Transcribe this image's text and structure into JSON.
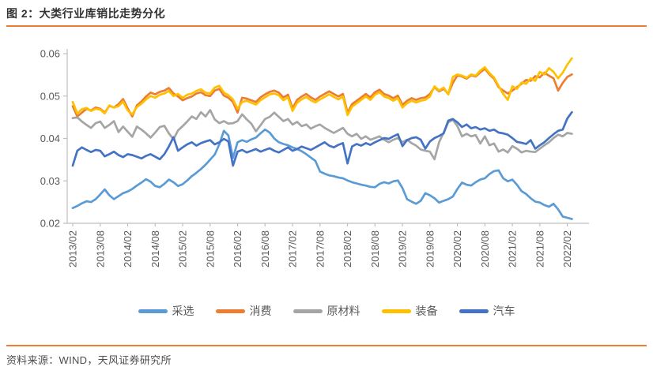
{
  "header": {
    "title": "图 2：大类行业库销比走势分化"
  },
  "footer": {
    "source": "资料来源：WIND，天风证券研究所"
  },
  "style": {
    "accent_rule_color": "#ED7D31",
    "axis_color": "#BFBFBF",
    "tick_label_color": "#595959",
    "title_color": "#333333"
  },
  "chart_data": {
    "type": "line",
    "title": "大类行业库销比走势分化",
    "xlabel": "",
    "ylabel": "",
    "ylim": [
      0.02,
      0.06
    ],
    "y_ticks": [
      0.02,
      0.03,
      0.04,
      0.05,
      0.06
    ],
    "grid": false,
    "legend_position": "bottom",
    "x_frequency": "monthly",
    "x_start": "2013/02",
    "x_end": "2022/03",
    "tick_every": 6,
    "x_tick_labels": [
      "2013/02",
      "2013/08",
      "2014/02",
      "2014/08",
      "2015/02",
      "2015/08",
      "2016/02",
      "2016/08",
      "2017/02",
      "2017/08",
      "2018/02",
      "2018/08",
      "2019/02",
      "2019/08",
      "2020/02",
      "2020/08",
      "2021/02",
      "2021/08",
      "2022/02"
    ],
    "series": [
      {
        "name": "采选",
        "color": "#5B9BD5",
        "values": [
          0.0236,
          0.0241,
          0.0247,
          0.0252,
          0.025,
          0.0257,
          0.0268,
          0.028,
          0.0266,
          0.0257,
          0.0264,
          0.0271,
          0.0275,
          0.0281,
          0.0289,
          0.0296,
          0.0304,
          0.0298,
          0.0288,
          0.0285,
          0.0293,
          0.0303,
          0.0297,
          0.0288,
          0.0292,
          0.0301,
          0.0311,
          0.0319,
          0.0328,
          0.0338,
          0.035,
          0.0362,
          0.0386,
          0.0418,
          0.0407,
          0.0354,
          0.0391,
          0.0396,
          0.0392,
          0.0398,
          0.0402,
          0.0412,
          0.0421,
          0.0414,
          0.04,
          0.0391,
          0.0387,
          0.0384,
          0.0379,
          0.0375,
          0.037,
          0.0363,
          0.0355,
          0.0347,
          0.0322,
          0.0317,
          0.0313,
          0.0311,
          0.0308,
          0.0306,
          0.0301,
          0.0297,
          0.0294,
          0.0291,
          0.0289,
          0.0286,
          0.0285,
          0.0293,
          0.0297,
          0.0294,
          0.0299,
          0.0301,
          0.0283,
          0.0257,
          0.0251,
          0.0246,
          0.0253,
          0.0271,
          0.0266,
          0.0259,
          0.0249,
          0.0253,
          0.0257,
          0.0263,
          0.0281,
          0.0296,
          0.0291,
          0.0289,
          0.0297,
          0.0303,
          0.0306,
          0.0316,
          0.0323,
          0.0325,
          0.0306,
          0.0299,
          0.0303,
          0.0291,
          0.0276,
          0.0269,
          0.0259,
          0.0251,
          0.0249,
          0.0243,
          0.0239,
          0.0246,
          0.0233,
          0.0216,
          0.0213,
          0.021
        ]
      },
      {
        "name": "消费",
        "color": "#ED7D31",
        "values": [
          0.0476,
          0.0452,
          0.0461,
          0.047,
          0.0466,
          0.0473,
          0.047,
          0.0461,
          0.0477,
          0.0473,
          0.0481,
          0.0493,
          0.0471,
          0.0452,
          0.0478,
          0.0487,
          0.0499,
          0.0508,
          0.0504,
          0.051,
          0.0513,
          0.0519,
          0.0506,
          0.0499,
          0.049,
          0.0495,
          0.0499,
          0.0506,
          0.0509,
          0.0502,
          0.05,
          0.0513,
          0.0517,
          0.0501,
          0.0496,
          0.0486,
          0.0461,
          0.0496,
          0.0494,
          0.049,
          0.0486,
          0.0497,
          0.0504,
          0.051,
          0.0513,
          0.0508,
          0.0497,
          0.0503,
          0.0471,
          0.0491,
          0.0499,
          0.0505,
          0.0497,
          0.0491,
          0.0499,
          0.0505,
          0.0511,
          0.0505,
          0.0499,
          0.0505,
          0.0461,
          0.0481,
          0.0489,
          0.0497,
          0.0505,
          0.0497,
          0.0509,
          0.0515,
          0.0505,
          0.0501,
          0.0495,
          0.0501,
          0.0479,
          0.0489,
          0.0495,
          0.0491,
          0.0495,
          0.0497,
          0.0505,
          0.0521,
          0.0511,
          0.0517,
          0.0505,
          0.0531,
          0.0549,
          0.0546,
          0.0541,
          0.0549,
          0.0546,
          0.0556,
          0.0564,
          0.0551,
          0.0541,
          0.0521,
          0.0513,
          0.0506,
          0.0513,
          0.0521,
          0.0529,
          0.0538,
          0.0536,
          0.0547,
          0.0544,
          0.0555,
          0.0548,
          0.0542,
          0.0513,
          0.0531,
          0.0545,
          0.0551
        ]
      },
      {
        "name": "原材料",
        "color": "#A5A5A5",
        "values": [
          0.0448,
          0.045,
          0.044,
          0.0432,
          0.0425,
          0.0436,
          0.044,
          0.0425,
          0.0432,
          0.0441,
          0.0415,
          0.0428,
          0.0416,
          0.0404,
          0.0428,
          0.0421,
          0.0412,
          0.0402,
          0.0414,
          0.0427,
          0.043,
          0.0412,
          0.0398,
          0.0419,
          0.0429,
          0.044,
          0.0452,
          0.0446,
          0.0462,
          0.0452,
          0.0467,
          0.0445,
          0.0436,
          0.0441,
          0.0435,
          0.0436,
          0.0441,
          0.0457,
          0.0445,
          0.0435,
          0.0417,
          0.0431,
          0.0446,
          0.0451,
          0.0461,
          0.0451,
          0.0441,
          0.0446,
          0.0433,
          0.0439,
          0.0429,
          0.0433,
          0.0423,
          0.0429,
          0.0433,
          0.0425,
          0.0419,
          0.0413,
          0.0419,
          0.0425,
          0.0411,
          0.0405,
          0.0411,
          0.0399,
          0.0405,
          0.0397,
          0.0401,
          0.0405,
          0.0397,
          0.0391,
          0.0397,
          0.0401,
          0.0391,
          0.0397,
          0.0389,
          0.0383,
          0.0374,
          0.0371,
          0.0369,
          0.0351,
          0.0391,
          0.0414,
          0.0438,
          0.0444,
          0.0429,
          0.0405,
          0.0411,
          0.0405,
          0.0408,
          0.0388,
          0.0405,
          0.0384,
          0.0388,
          0.0369,
          0.0374,
          0.0367,
          0.0382,
          0.0376,
          0.0367,
          0.0371,
          0.0369,
          0.0368,
          0.0376,
          0.0384,
          0.0391,
          0.0401,
          0.0409,
          0.0405,
          0.0413,
          0.0411
        ]
      },
      {
        "name": "装备",
        "color": "#FFC000",
        "values": [
          0.0486,
          0.0459,
          0.0469,
          0.0472,
          0.0465,
          0.047,
          0.0468,
          0.0459,
          0.0478,
          0.0473,
          0.0476,
          0.0487,
          0.0466,
          0.0457,
          0.0474,
          0.0482,
          0.0492,
          0.05,
          0.0496,
          0.0503,
          0.0506,
          0.0512,
          0.05,
          0.0505,
          0.0496,
          0.0503,
          0.0506,
          0.0512,
          0.0516,
          0.0508,
          0.0506,
          0.052,
          0.0524,
          0.0508,
          0.0502,
          0.0492,
          0.047,
          0.0486,
          0.0489,
          0.0484,
          0.048,
          0.049,
          0.0497,
          0.0504,
          0.0506,
          0.0502,
          0.049,
          0.0497,
          0.0465,
          0.0484,
          0.0492,
          0.0498,
          0.049,
          0.0485,
          0.0492,
          0.0498,
          0.0504,
          0.0498,
          0.0492,
          0.0499,
          0.0455,
          0.0475,
          0.0483,
          0.0491,
          0.0499,
          0.0491,
          0.0503,
          0.0509,
          0.0499,
          0.0495,
          0.0489,
          0.0495,
          0.0473,
          0.0483,
          0.0489,
          0.0485,
          0.0489,
          0.0491,
          0.0499,
          0.0523,
          0.0513,
          0.052,
          0.0504,
          0.0545,
          0.0551,
          0.0548,
          0.0543,
          0.0551,
          0.0548,
          0.056,
          0.0568,
          0.0554,
          0.0544,
          0.0524,
          0.0505,
          0.0491,
          0.0523,
          0.0517,
          0.0532,
          0.0529,
          0.0542,
          0.0536,
          0.0557,
          0.0551,
          0.0566,
          0.0557,
          0.0542,
          0.0555,
          0.0574,
          0.0589
        ]
      },
      {
        "name": "汽车",
        "color": "#4472C4",
        "values": [
          0.0336,
          0.0371,
          0.0379,
          0.0373,
          0.0368,
          0.0373,
          0.0371,
          0.0358,
          0.0363,
          0.0369,
          0.0361,
          0.0356,
          0.0363,
          0.0361,
          0.0357,
          0.0353,
          0.0359,
          0.0363,
          0.0357,
          0.0351,
          0.0363,
          0.0381,
          0.0403,
          0.0371,
          0.0379,
          0.0386,
          0.0391,
          0.0383,
          0.0389,
          0.0393,
          0.0396,
          0.0386,
          0.0391,
          0.0399,
          0.0393,
          0.0336,
          0.0369,
          0.0373,
          0.0367,
          0.0371,
          0.0375,
          0.0369,
          0.0373,
          0.0377,
          0.0371,
          0.0367,
          0.0373,
          0.0379,
          0.0371,
          0.0375,
          0.0381,
          0.0377,
          0.0373,
          0.0379,
          0.0385,
          0.0391,
          0.0383,
          0.0379,
          0.0385,
          0.0389,
          0.0341,
          0.0381,
          0.0387,
          0.0383,
          0.0389,
          0.0385,
          0.0391,
          0.0396,
          0.0401,
          0.0399,
          0.0405,
          0.041,
          0.0382,
          0.0396,
          0.0401,
          0.0403,
          0.0397,
          0.0376,
          0.0393,
          0.0401,
          0.0406,
          0.0412,
          0.0442,
          0.0446,
          0.0438,
          0.0427,
          0.0433,
          0.0424,
          0.0427,
          0.0421,
          0.0424,
          0.0418,
          0.0421,
          0.0414,
          0.0412,
          0.0409,
          0.0401,
          0.0392,
          0.039,
          0.0387,
          0.0396,
          0.0376,
          0.0384,
          0.0391,
          0.0401,
          0.041,
          0.0418,
          0.0421,
          0.0447,
          0.0462
        ]
      }
    ]
  }
}
